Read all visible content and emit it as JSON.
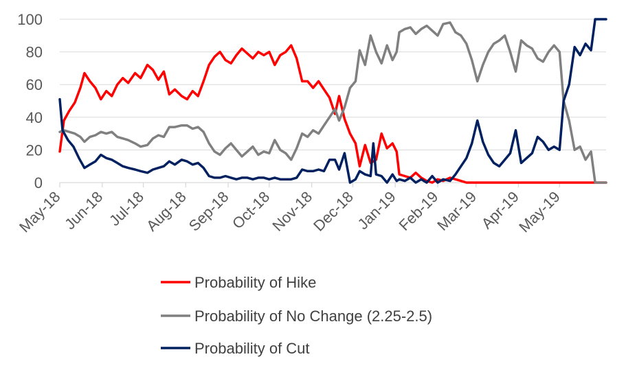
{
  "chart_data": {
    "type": "line",
    "title": "",
    "xlabel": "",
    "ylabel": "",
    "ylim": [
      0,
      100
    ],
    "y_ticks": [
      "0",
      "20",
      "40",
      "60",
      "80",
      "100"
    ],
    "y_tick_values": [
      0,
      20,
      40,
      60,
      80,
      100
    ],
    "x_tick_labels": [
      "May-18",
      "Jun-18",
      "Jul-18",
      "Aug-18",
      "Sep-18",
      "Oct-18",
      "Nov-18",
      "Dec-18",
      "Jan-19",
      "Feb-19",
      "Mar-19",
      "Apr-19",
      "May-19"
    ],
    "grid": "horizontal",
    "legend_position": "bottom",
    "series": [
      {
        "name": "Probability of Hike",
        "color": "#ff0000",
        "points": [
          [
            "2018-05-01",
            19
          ],
          [
            "2018-05-04",
            38
          ],
          [
            "2018-05-08",
            44
          ],
          [
            "2018-05-12",
            49
          ],
          [
            "2018-05-16",
            58
          ],
          [
            "2018-05-19",
            67
          ],
          [
            "2018-05-23",
            62
          ],
          [
            "2018-05-27",
            58
          ],
          [
            "2018-05-31",
            51
          ],
          [
            "2018-06-04",
            56
          ],
          [
            "2018-06-08",
            53
          ],
          [
            "2018-06-12",
            60
          ],
          [
            "2018-06-16",
            64
          ],
          [
            "2018-06-20",
            61
          ],
          [
            "2018-06-25",
            67
          ],
          [
            "2018-06-29",
            64
          ],
          [
            "2018-07-04",
            72
          ],
          [
            "2018-07-08",
            69
          ],
          [
            "2018-07-12",
            63
          ],
          [
            "2018-07-16",
            68
          ],
          [
            "2018-07-20",
            54
          ],
          [
            "2018-07-24",
            57
          ],
          [
            "2018-07-29",
            53
          ],
          [
            "2018-08-02",
            51
          ],
          [
            "2018-08-06",
            56
          ],
          [
            "2018-08-10",
            53
          ],
          [
            "2018-08-14",
            62
          ],
          [
            "2018-08-18",
            72
          ],
          [
            "2018-08-22",
            77
          ],
          [
            "2018-08-26",
            80
          ],
          [
            "2018-08-30",
            75
          ],
          [
            "2018-09-03",
            73
          ],
          [
            "2018-09-07",
            78
          ],
          [
            "2018-09-11",
            82
          ],
          [
            "2018-09-15",
            79
          ],
          [
            "2018-09-19",
            76
          ],
          [
            "2018-09-23",
            80
          ],
          [
            "2018-09-27",
            78
          ],
          [
            "2018-10-01",
            80
          ],
          [
            "2018-10-05",
            72
          ],
          [
            "2018-10-09",
            78
          ],
          [
            "2018-10-13",
            80
          ],
          [
            "2018-10-17",
            84
          ],
          [
            "2018-10-21",
            76
          ],
          [
            "2018-10-25",
            62
          ],
          [
            "2018-10-29",
            62
          ],
          [
            "2018-11-02",
            58
          ],
          [
            "2018-11-06",
            62
          ],
          [
            "2018-11-10",
            57
          ],
          [
            "2018-11-14",
            52
          ],
          [
            "2018-11-18",
            42
          ],
          [
            "2018-11-21",
            53
          ],
          [
            "2018-11-25",
            39
          ],
          [
            "2018-11-29",
            30
          ],
          [
            "2018-12-03",
            24
          ],
          [
            "2018-12-06",
            10
          ],
          [
            "2018-12-10",
            23
          ],
          [
            "2018-12-14",
            12
          ],
          [
            "2018-12-18",
            14
          ],
          [
            "2018-12-22",
            30
          ],
          [
            "2018-12-26",
            21
          ],
          [
            "2018-12-30",
            24
          ],
          [
            "2019-01-02",
            19
          ],
          [
            "2019-01-04",
            5
          ],
          [
            "2019-01-08",
            4
          ],
          [
            "2019-01-12",
            3
          ],
          [
            "2019-01-16",
            6
          ],
          [
            "2019-01-20",
            3
          ],
          [
            "2019-01-24",
            1
          ],
          [
            "2019-01-28",
            0
          ],
          [
            "2019-02-01",
            2
          ],
          [
            "2019-02-05",
            1
          ],
          [
            "2019-02-10",
            3
          ],
          [
            "2019-02-14",
            2
          ],
          [
            "2019-02-18",
            1
          ],
          [
            "2019-02-22",
            0
          ],
          [
            "2019-03-01",
            0
          ],
          [
            "2019-03-15",
            0
          ],
          [
            "2019-04-01",
            0
          ],
          [
            "2019-04-15",
            0
          ],
          [
            "2019-05-01",
            0
          ],
          [
            "2019-05-15",
            0
          ],
          [
            "2019-06-04",
            0
          ]
        ]
      },
      {
        "name": "Probability of No Change (2.25-2.5)",
        "color": "#808080",
        "points": [
          [
            "2018-05-01",
            31
          ],
          [
            "2018-05-04",
            32
          ],
          [
            "2018-05-08",
            31
          ],
          [
            "2018-05-12",
            30
          ],
          [
            "2018-05-16",
            28
          ],
          [
            "2018-05-19",
            25
          ],
          [
            "2018-05-23",
            28
          ],
          [
            "2018-05-27",
            29
          ],
          [
            "2018-05-31",
            31
          ],
          [
            "2018-06-04",
            30
          ],
          [
            "2018-06-08",
            31
          ],
          [
            "2018-06-12",
            28
          ],
          [
            "2018-06-16",
            27
          ],
          [
            "2018-06-20",
            26
          ],
          [
            "2018-06-25",
            24
          ],
          [
            "2018-06-29",
            22
          ],
          [
            "2018-07-04",
            23
          ],
          [
            "2018-07-08",
            27
          ],
          [
            "2018-07-12",
            29
          ],
          [
            "2018-07-16",
            28
          ],
          [
            "2018-07-20",
            34
          ],
          [
            "2018-07-24",
            34
          ],
          [
            "2018-07-29",
            35
          ],
          [
            "2018-08-02",
            35
          ],
          [
            "2018-08-06",
            33
          ],
          [
            "2018-08-10",
            34
          ],
          [
            "2018-08-14",
            31
          ],
          [
            "2018-08-18",
            24
          ],
          [
            "2018-08-22",
            19
          ],
          [
            "2018-08-26",
            17
          ],
          [
            "2018-08-30",
            21
          ],
          [
            "2018-09-03",
            24
          ],
          [
            "2018-09-07",
            20
          ],
          [
            "2018-09-11",
            16
          ],
          [
            "2018-09-15",
            19
          ],
          [
            "2018-09-19",
            22
          ],
          [
            "2018-09-23",
            17
          ],
          [
            "2018-09-27",
            19
          ],
          [
            "2018-10-01",
            18
          ],
          [
            "2018-10-05",
            26
          ],
          [
            "2018-10-09",
            20
          ],
          [
            "2018-10-13",
            18
          ],
          [
            "2018-10-17",
            14
          ],
          [
            "2018-10-21",
            21
          ],
          [
            "2018-10-25",
            30
          ],
          [
            "2018-10-29",
            28
          ],
          [
            "2018-11-02",
            32
          ],
          [
            "2018-11-06",
            30
          ],
          [
            "2018-11-10",
            35
          ],
          [
            "2018-11-14",
            40
          ],
          [
            "2018-11-18",
            45
          ],
          [
            "2018-11-21",
            38
          ],
          [
            "2018-11-25",
            46
          ],
          [
            "2018-11-29",
            58
          ],
          [
            "2018-12-03",
            62
          ],
          [
            "2018-12-06",
            81
          ],
          [
            "2018-12-10",
            72
          ],
          [
            "2018-12-14",
            90
          ],
          [
            "2018-12-18",
            80
          ],
          [
            "2018-12-22",
            73
          ],
          [
            "2018-12-26",
            84
          ],
          [
            "2018-12-30",
            75
          ],
          [
            "2019-01-02",
            80
          ],
          [
            "2019-01-04",
            92
          ],
          [
            "2019-01-08",
            94
          ],
          [
            "2019-01-12",
            95
          ],
          [
            "2019-01-16",
            91
          ],
          [
            "2019-01-20",
            94
          ],
          [
            "2019-01-24",
            96
          ],
          [
            "2019-01-28",
            93
          ],
          [
            "2019-02-01",
            90
          ],
          [
            "2019-02-05",
            97
          ],
          [
            "2019-02-10",
            98
          ],
          [
            "2019-02-14",
            92
          ],
          [
            "2019-02-18",
            90
          ],
          [
            "2019-02-22",
            85
          ],
          [
            "2019-02-26",
            75
          ],
          [
            "2019-03-02",
            62
          ],
          [
            "2019-03-06",
            72
          ],
          [
            "2019-03-10",
            80
          ],
          [
            "2019-03-14",
            85
          ],
          [
            "2019-03-18",
            87
          ],
          [
            "2019-03-22",
            90
          ],
          [
            "2019-03-26",
            80
          ],
          [
            "2019-03-30",
            68
          ],
          [
            "2019-04-03",
            87
          ],
          [
            "2019-04-07",
            84
          ],
          [
            "2019-04-11",
            82
          ],
          [
            "2019-04-15",
            76
          ],
          [
            "2019-04-19",
            74
          ],
          [
            "2019-04-23",
            80
          ],
          [
            "2019-04-27",
            84
          ],
          [
            "2019-05-01",
            80
          ],
          [
            "2019-05-04",
            50
          ],
          [
            "2019-05-08",
            38
          ],
          [
            "2019-05-12",
            20
          ],
          [
            "2019-05-16",
            22
          ],
          [
            "2019-05-20",
            14
          ],
          [
            "2019-05-24",
            19
          ],
          [
            "2019-05-27",
            0
          ],
          [
            "2019-06-04",
            0
          ]
        ]
      },
      {
        "name": "Probability of Cut",
        "color": "#002060",
        "points": [
          [
            "2018-05-01",
            51
          ],
          [
            "2018-05-03",
            32
          ],
          [
            "2018-05-07",
            26
          ],
          [
            "2018-05-11",
            22
          ],
          [
            "2018-05-15",
            15
          ],
          [
            "2018-05-19",
            9
          ],
          [
            "2018-05-23",
            11
          ],
          [
            "2018-05-27",
            13
          ],
          [
            "2018-05-31",
            17
          ],
          [
            "2018-06-04",
            15
          ],
          [
            "2018-06-08",
            14
          ],
          [
            "2018-06-12",
            12
          ],
          [
            "2018-06-16",
            10
          ],
          [
            "2018-06-20",
            9
          ],
          [
            "2018-06-25",
            8
          ],
          [
            "2018-06-29",
            7
          ],
          [
            "2018-07-04",
            6
          ],
          [
            "2018-07-08",
            8
          ],
          [
            "2018-07-12",
            9
          ],
          [
            "2018-07-16",
            10
          ],
          [
            "2018-07-20",
            13
          ],
          [
            "2018-07-24",
            11
          ],
          [
            "2018-07-29",
            14
          ],
          [
            "2018-08-02",
            13
          ],
          [
            "2018-08-06",
            11
          ],
          [
            "2018-08-10",
            12
          ],
          [
            "2018-08-14",
            9
          ],
          [
            "2018-08-18",
            4
          ],
          [
            "2018-08-22",
            3
          ],
          [
            "2018-08-26",
            3
          ],
          [
            "2018-08-30",
            4
          ],
          [
            "2018-09-03",
            3
          ],
          [
            "2018-09-07",
            2
          ],
          [
            "2018-09-11",
            3
          ],
          [
            "2018-09-15",
            3
          ],
          [
            "2018-09-19",
            2
          ],
          [
            "2018-09-23",
            3
          ],
          [
            "2018-09-27",
            3
          ],
          [
            "2018-10-01",
            2
          ],
          [
            "2018-10-05",
            3
          ],
          [
            "2018-10-09",
            2
          ],
          [
            "2018-10-13",
            2
          ],
          [
            "2018-10-17",
            2
          ],
          [
            "2018-10-21",
            3
          ],
          [
            "2018-10-25",
            8
          ],
          [
            "2018-10-29",
            7
          ],
          [
            "2018-11-02",
            7
          ],
          [
            "2018-11-06",
            8
          ],
          [
            "2018-11-10",
            7
          ],
          [
            "2018-11-14",
            14
          ],
          [
            "2018-11-18",
            14
          ],
          [
            "2018-11-21",
            8
          ],
          [
            "2018-11-25",
            18
          ],
          [
            "2018-11-29",
            0
          ],
          [
            "2018-12-03",
            2
          ],
          [
            "2018-12-06",
            7
          ],
          [
            "2018-12-10",
            5
          ],
          [
            "2018-12-14",
            4
          ],
          [
            "2018-12-16",
            24
          ],
          [
            "2018-12-18",
            5
          ],
          [
            "2018-12-22",
            4
          ],
          [
            "2018-12-26",
            0
          ],
          [
            "2018-12-30",
            5
          ],
          [
            "2019-01-02",
            1
          ],
          [
            "2019-01-04",
            2
          ],
          [
            "2019-01-08",
            1
          ],
          [
            "2019-01-12",
            3
          ],
          [
            "2019-01-16",
            0
          ],
          [
            "2019-01-20",
            2
          ],
          [
            "2019-01-24",
            0
          ],
          [
            "2019-01-28",
            4
          ],
          [
            "2019-02-01",
            0
          ],
          [
            "2019-02-05",
            2
          ],
          [
            "2019-02-10",
            1
          ],
          [
            "2019-02-14",
            5
          ],
          [
            "2019-02-18",
            10
          ],
          [
            "2019-02-22",
            15
          ],
          [
            "2019-02-26",
            24
          ],
          [
            "2019-03-02",
            38
          ],
          [
            "2019-03-06",
            25
          ],
          [
            "2019-03-10",
            17
          ],
          [
            "2019-03-14",
            12
          ],
          [
            "2019-03-18",
            10
          ],
          [
            "2019-03-22",
            14
          ],
          [
            "2019-03-26",
            18
          ],
          [
            "2019-03-30",
            32
          ],
          [
            "2019-04-03",
            12
          ],
          [
            "2019-04-07",
            15
          ],
          [
            "2019-04-11",
            18
          ],
          [
            "2019-04-15",
            28
          ],
          [
            "2019-04-19",
            25
          ],
          [
            "2019-04-23",
            20
          ],
          [
            "2019-04-27",
            22
          ],
          [
            "2019-05-01",
            20
          ],
          [
            "2019-05-04",
            50
          ],
          [
            "2019-05-08",
            60
          ],
          [
            "2019-05-12",
            83
          ],
          [
            "2019-05-16",
            78
          ],
          [
            "2019-05-20",
            85
          ],
          [
            "2019-05-24",
            81
          ],
          [
            "2019-05-27",
            100
          ],
          [
            "2019-06-04",
            100
          ]
        ]
      }
    ]
  }
}
